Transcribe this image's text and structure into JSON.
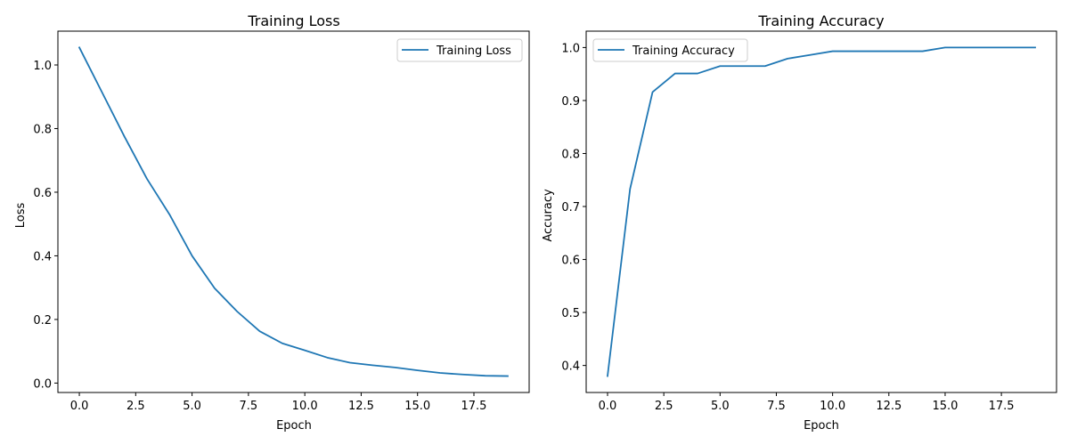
{
  "figure": {
    "background": "#ffffff",
    "line_color": "#1f77b4"
  },
  "chart_data": [
    {
      "type": "line",
      "title": "Training Loss",
      "xlabel": "Epoch",
      "ylabel": "Loss",
      "xlim": [
        -0.95,
        19.95
      ],
      "ylim": [
        -0.0296,
        1.1063
      ],
      "xticks": [
        0,
        2.5,
        5,
        7.5,
        10,
        12.5,
        15,
        17.5
      ],
      "xtick_labels": [
        "0.0",
        "2.5",
        "5.0",
        "7.5",
        "10.0",
        "12.5",
        "15.0",
        "17.5"
      ],
      "yticks": [
        0,
        0.2,
        0.4,
        0.6,
        0.8,
        1.0
      ],
      "ytick_labels": [
        "0.0",
        "0.2",
        "0.4",
        "0.6",
        "0.8",
        "1.0"
      ],
      "grid": false,
      "legend": {
        "position": "top-right"
      },
      "x": [
        0,
        1,
        2,
        3,
        4,
        5,
        6,
        7,
        8,
        9,
        10,
        11,
        12,
        13,
        14,
        15,
        16,
        17,
        18,
        19
      ],
      "series": [
        {
          "name": "Training Loss",
          "color": "#1f77b4",
          "values": [
            1.055,
            0.915,
            0.775,
            0.642,
            0.53,
            0.4,
            0.298,
            0.225,
            0.163,
            0.125,
            0.103,
            0.08,
            0.064,
            0.056,
            0.049,
            0.04,
            0.032,
            0.027,
            0.023,
            0.022
          ]
        }
      ]
    },
    {
      "type": "line",
      "title": "Training Accuracy",
      "xlabel": "Epoch",
      "ylabel": "Accuracy",
      "xlim": [
        -0.95,
        19.95
      ],
      "ylim": [
        0.349,
        1.0309
      ],
      "xticks": [
        0,
        2.5,
        5,
        7.5,
        10,
        12.5,
        15,
        17.5
      ],
      "xtick_labels": [
        "0.0",
        "2.5",
        "5.0",
        "7.5",
        "10.0",
        "12.5",
        "15.0",
        "17.5"
      ],
      "yticks": [
        0.4,
        0.5,
        0.6,
        0.7,
        0.8,
        0.9,
        1.0
      ],
      "ytick_labels": [
        "0.4",
        "0.5",
        "0.6",
        "0.7",
        "0.8",
        "0.9",
        "1.0"
      ],
      "grid": false,
      "legend": {
        "position": "top-left"
      },
      "x": [
        0,
        1,
        2,
        3,
        4,
        5,
        6,
        7,
        8,
        9,
        10,
        11,
        12,
        13,
        14,
        15,
        16,
        17,
        18,
        19
      ],
      "series": [
        {
          "name": "Training Accuracy",
          "color": "#1f77b4",
          "values": [
            0.38,
            0.733,
            0.916,
            0.951,
            0.951,
            0.965,
            0.965,
            0.965,
            0.979,
            0.986,
            0.993,
            0.993,
            0.993,
            0.993,
            0.993,
            1.0,
            1.0,
            1.0,
            1.0,
            1.0
          ]
        }
      ]
    }
  ]
}
